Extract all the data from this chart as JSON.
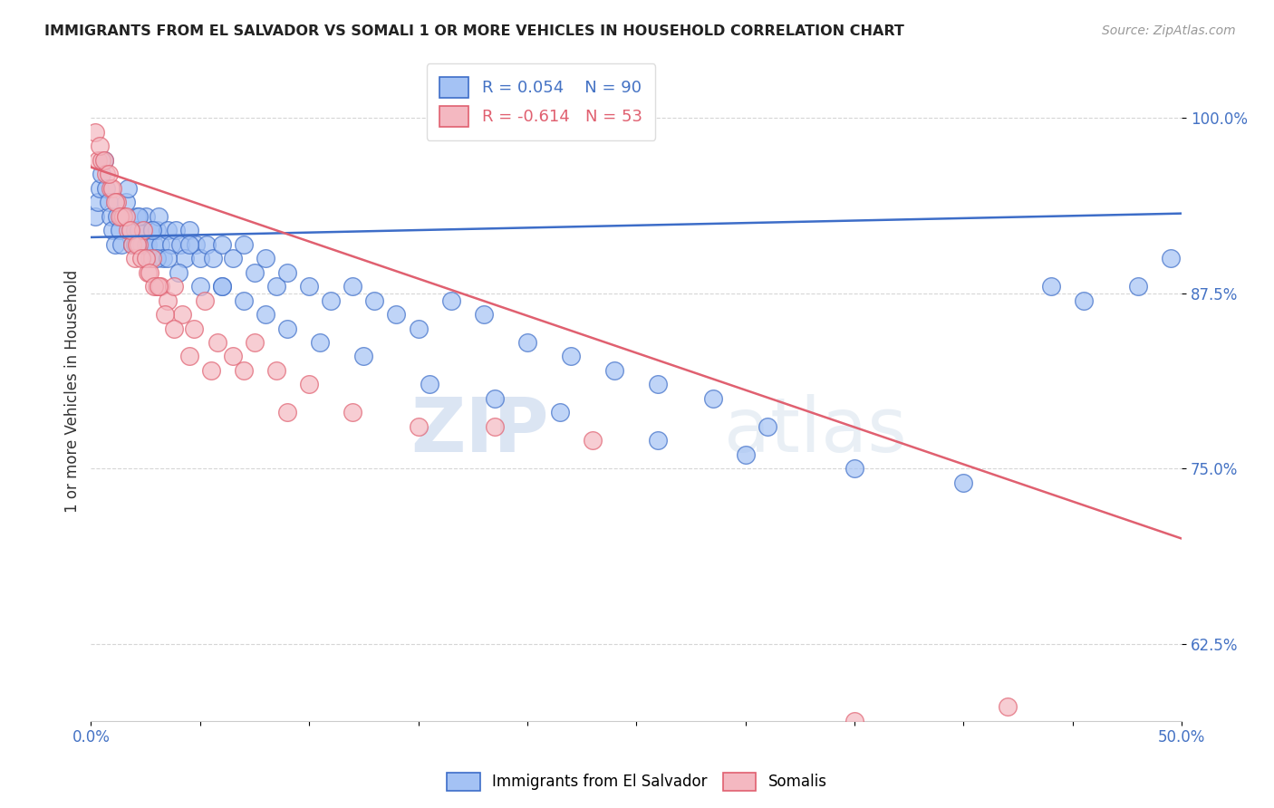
{
  "title": "IMMIGRANTS FROM EL SALVADOR VS SOMALI 1 OR MORE VEHICLES IN HOUSEHOLD CORRELATION CHART",
  "source": "Source: ZipAtlas.com",
  "ylabel": "1 or more Vehicles in Household",
  "yticks": [
    100.0,
    87.5,
    75.0,
    62.5
  ],
  "ytick_labels": [
    "100.0%",
    "87.5%",
    "75.0%",
    "62.5%"
  ],
  "xlim": [
    0.0,
    50.0
  ],
  "ylim": [
    57.0,
    104.0
  ],
  "legend_el_salvador": "Immigrants from El Salvador",
  "legend_somali": "Somalis",
  "R_el_salvador": 0.054,
  "N_el_salvador": 90,
  "R_somali": -0.614,
  "N_somali": 53,
  "color_blue": "#a4c2f4",
  "color_pink": "#f4b8c1",
  "color_blue_line": "#3d6dc8",
  "color_pink_line": "#e06070",
  "color_blue_edge": "#3d6dc8",
  "color_pink_edge": "#e06070",
  "watermark_zip": "ZIP",
  "watermark_atlas": "atlas",
  "blue_line_y0": 91.5,
  "blue_line_y1": 93.2,
  "pink_line_y0": 96.5,
  "pink_line_y1": 70.0,
  "el_salvador_x": [
    0.2,
    0.3,
    0.4,
    0.5,
    0.6,
    0.7,
    0.8,
    0.9,
    1.0,
    1.1,
    1.2,
    1.3,
    1.4,
    1.5,
    1.6,
    1.7,
    1.8,
    1.9,
    2.0,
    2.0,
    2.1,
    2.2,
    2.3,
    2.4,
    2.5,
    2.5,
    2.6,
    2.7,
    2.8,
    2.9,
    3.0,
    3.1,
    3.2,
    3.3,
    3.5,
    3.7,
    3.9,
    4.1,
    4.3,
    4.5,
    4.8,
    5.0,
    5.3,
    5.6,
    6.0,
    6.5,
    7.0,
    7.5,
    8.0,
    8.5,
    9.0,
    10.0,
    11.0,
    12.0,
    13.0,
    14.0,
    15.0,
    16.5,
    18.0,
    20.0,
    22.0,
    24.0,
    26.0,
    28.5,
    31.0,
    3.0,
    4.0,
    5.0,
    6.0,
    7.0,
    8.0,
    9.0,
    10.5,
    12.5,
    15.5,
    18.5,
    21.5,
    26.0,
    30.0,
    35.0,
    40.0,
    44.0,
    45.5,
    48.0,
    49.5,
    2.2,
    2.8,
    3.5,
    4.5,
    6.0
  ],
  "el_salvador_y": [
    93,
    94,
    95,
    96,
    97,
    95,
    94,
    93,
    92,
    91,
    93,
    92,
    91,
    93,
    94,
    95,
    92,
    91,
    92,
    91,
    93,
    92,
    91,
    92,
    91,
    93,
    91,
    90,
    92,
    91,
    92,
    93,
    91,
    90,
    92,
    91,
    92,
    91,
    90,
    92,
    91,
    90,
    91,
    90,
    91,
    90,
    91,
    89,
    90,
    88,
    89,
    88,
    87,
    88,
    87,
    86,
    85,
    87,
    86,
    84,
    83,
    82,
    81,
    80,
    78,
    90,
    89,
    88,
    88,
    87,
    86,
    85,
    84,
    83,
    81,
    80,
    79,
    77,
    76,
    75,
    74,
    88,
    87,
    88,
    90,
    93,
    92,
    90,
    91,
    88
  ],
  "somali_x": [
    0.2,
    0.3,
    0.5,
    0.7,
    0.9,
    1.0,
    1.2,
    1.4,
    1.5,
    1.7,
    1.9,
    2.0,
    2.2,
    2.4,
    2.6,
    2.8,
    3.0,
    3.2,
    3.5,
    3.8,
    4.2,
    4.7,
    5.2,
    5.8,
    6.5,
    7.5,
    8.5,
    10.0,
    12.0,
    15.0,
    18.5,
    23.0,
    35.0,
    0.4,
    0.6,
    0.8,
    1.1,
    1.3,
    1.6,
    1.8,
    2.1,
    2.3,
    2.5,
    2.7,
    2.9,
    3.1,
    3.4,
    3.8,
    4.5,
    5.5,
    7.0,
    9.0,
    42.0
  ],
  "somali_y": [
    99,
    97,
    97,
    96,
    95,
    95,
    94,
    93,
    93,
    92,
    91,
    90,
    91,
    92,
    89,
    90,
    88,
    88,
    87,
    88,
    86,
    85,
    87,
    84,
    83,
    84,
    82,
    81,
    79,
    78,
    78,
    77,
    57,
    98,
    97,
    96,
    94,
    93,
    93,
    92,
    91,
    90,
    90,
    89,
    88,
    88,
    86,
    85,
    83,
    82,
    82,
    79,
    58
  ]
}
